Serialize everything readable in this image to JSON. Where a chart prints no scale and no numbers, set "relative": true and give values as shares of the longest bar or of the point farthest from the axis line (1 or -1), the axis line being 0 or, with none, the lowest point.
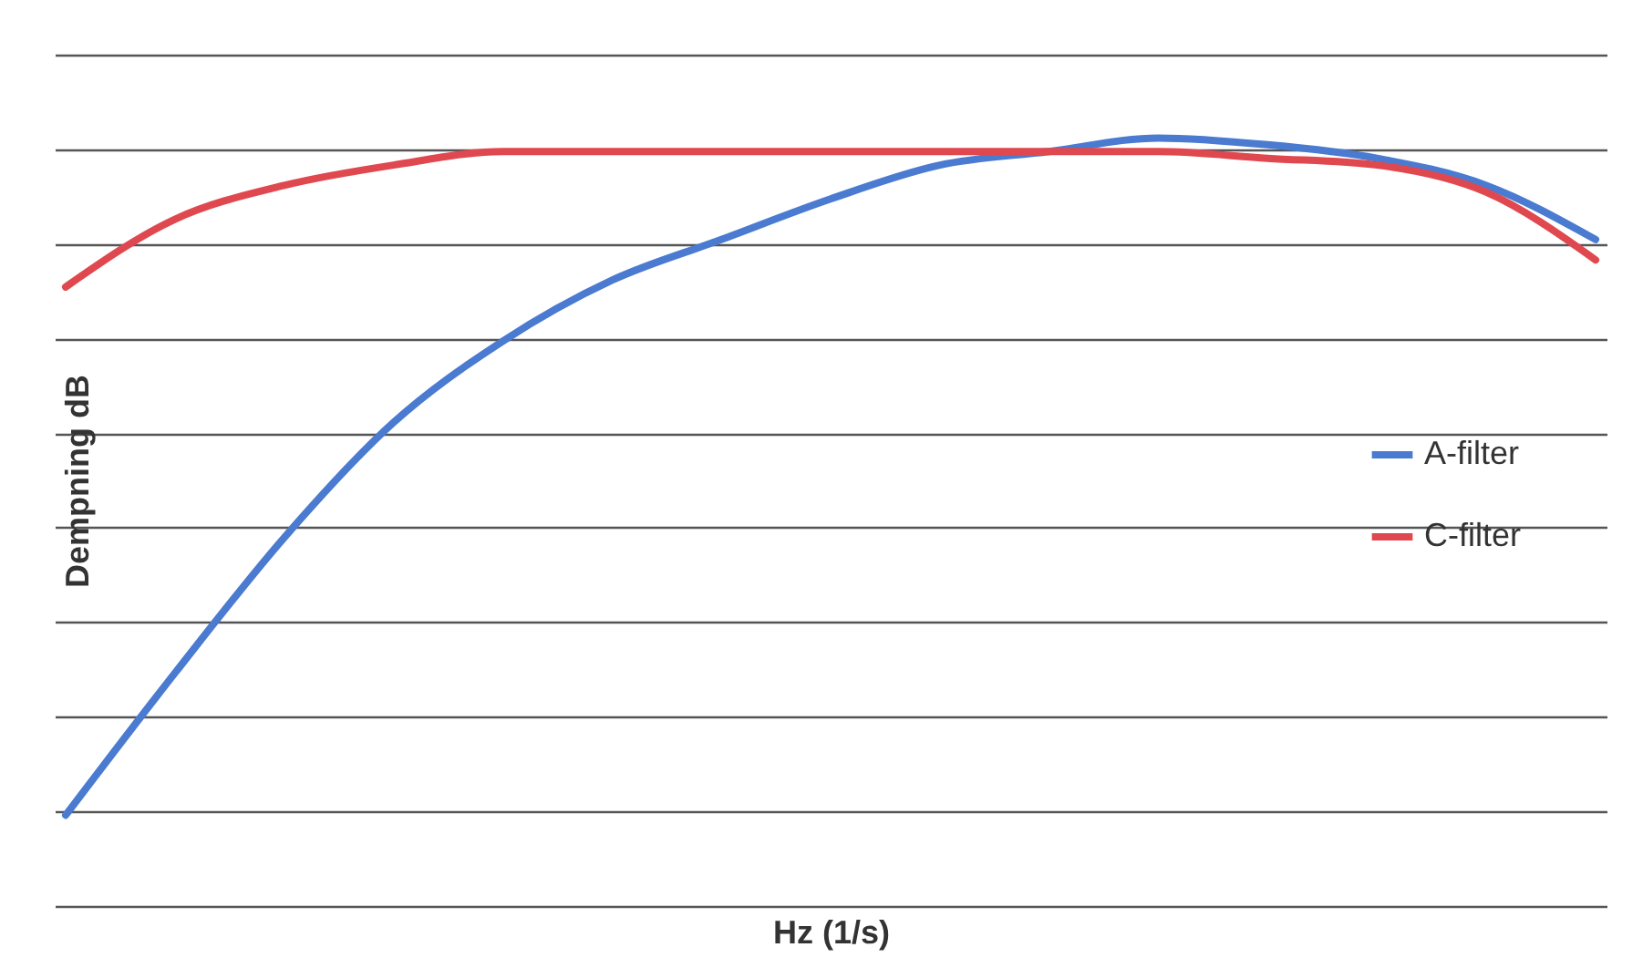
{
  "chart_data": {
    "type": "line",
    "relative": true,
    "xlabel": "Hz (1/s)",
    "ylabel": "Dempning dB",
    "categories": [
      null,
      null,
      null,
      null,
      null,
      null,
      null,
      null,
      null,
      null,
      null,
      null,
      null,
      null,
      null
    ],
    "series": [
      {
        "name": "A-filter",
        "color": "#4a7bd0",
        "values": [
          0,
          0.21,
          0.41,
          0.58,
          0.7,
          0.79,
          0.85,
          0.91,
          0.96,
          0.98,
          1.0,
          0.99,
          0.97,
          0.93,
          0.85
        ]
      },
      {
        "name": "C-filter",
        "color": "#e0484f",
        "values": [
          0.78,
          0.88,
          0.93,
          0.96,
          0.98,
          0.98,
          0.98,
          0.98,
          0.98,
          0.98,
          0.98,
          0.97,
          0.96,
          0.92,
          0.82
        ]
      }
    ],
    "grid": "y",
    "legend": "right",
    "line_style": "solid",
    "marker": "none"
  }
}
